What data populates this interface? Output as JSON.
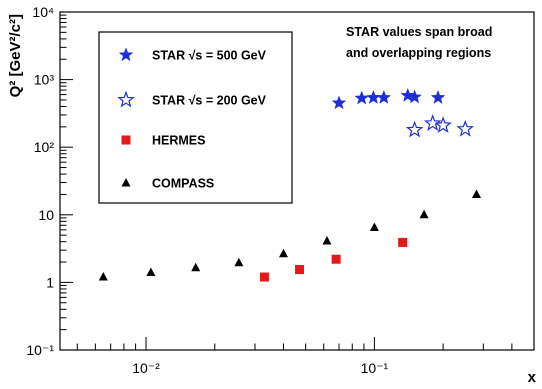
{
  "chart_data": {
    "type": "scatter",
    "title": "",
    "xlabel": "x",
    "ylabel": "Q² [GeV²/c²]",
    "x_scale": "log",
    "y_scale": "log",
    "xlim": [
      0.0042,
      0.5
    ],
    "ylim": [
      0.1,
      10000
    ],
    "grid": false,
    "legend_position": "top-left",
    "x_tick_labels": [
      "10⁻²",
      "10⁻¹"
    ],
    "y_tick_labels": [
      "10⁻¹",
      "1",
      "10",
      "10²",
      "10³",
      "10⁴"
    ],
    "annotation": [
      "STAR values span broad",
      "and overlapping regions"
    ],
    "series": [
      {
        "name": "STAR √s = 500 GeV",
        "marker": "filled-star",
        "color": "#1f2fd6",
        "points": [
          [
            0.07,
            450
          ],
          [
            0.088,
            530
          ],
          [
            0.099,
            540
          ],
          [
            0.11,
            540
          ],
          [
            0.14,
            580
          ],
          [
            0.15,
            550
          ],
          [
            0.19,
            540
          ]
        ]
      },
      {
        "name": "STAR √s = 200 GeV",
        "marker": "open-star",
        "color": "#1f2fd6",
        "points": [
          [
            0.15,
            180
          ],
          [
            0.18,
            225
          ],
          [
            0.2,
            210
          ],
          [
            0.25,
            185
          ]
        ]
      },
      {
        "name": "HERMES",
        "marker": "filled-square",
        "color": "#e31a1c",
        "points": [
          [
            0.033,
            1.2
          ],
          [
            0.047,
            1.55
          ],
          [
            0.068,
            2.2
          ],
          [
            0.133,
            3.9
          ]
        ]
      },
      {
        "name": "COMPASS",
        "marker": "filled-triangle",
        "color": "#000000",
        "points": [
          [
            0.0065,
            1.2
          ],
          [
            0.0105,
            1.4
          ],
          [
            0.0165,
            1.65
          ],
          [
            0.0255,
            1.95
          ],
          [
            0.04,
            2.65
          ],
          [
            0.062,
            4.1
          ],
          [
            0.1,
            6.5
          ],
          [
            0.165,
            10
          ],
          [
            0.28,
            20
          ]
        ]
      }
    ]
  }
}
